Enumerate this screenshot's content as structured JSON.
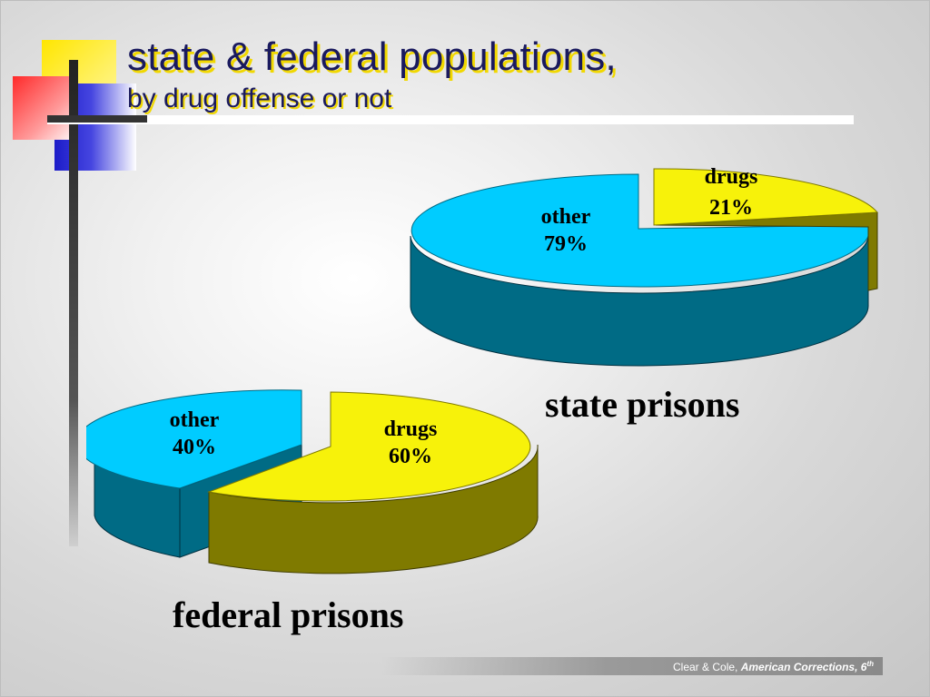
{
  "title": "state & federal populations,",
  "subtitle": "by drug offense or not",
  "footer": {
    "authors": "Clear & Cole,",
    "book": "American Corrections, 6",
    "edition_sup": "th"
  },
  "colors": {
    "other_top": "#00ccff",
    "other_side": "#006b85",
    "drugs_top": "#f7f20a",
    "drugs_side": "#7f7a00",
    "title_text": "#1a1a5e",
    "title_shadow": "#f1d800"
  },
  "chart_data": [
    {
      "type": "pie",
      "caption": "state prisons",
      "slices": [
        {
          "label": "other",
          "percent_label": "79%",
          "value": 79
        },
        {
          "label": "drugs",
          "percent_label": "21%",
          "value": 21,
          "exploded": true
        }
      ]
    },
    {
      "type": "pie",
      "caption": "federal prisons",
      "slices": [
        {
          "label": "other",
          "percent_label": "40%",
          "value": 40,
          "exploded": true
        },
        {
          "label": "drugs",
          "percent_label": "60%",
          "value": 60
        }
      ]
    }
  ]
}
